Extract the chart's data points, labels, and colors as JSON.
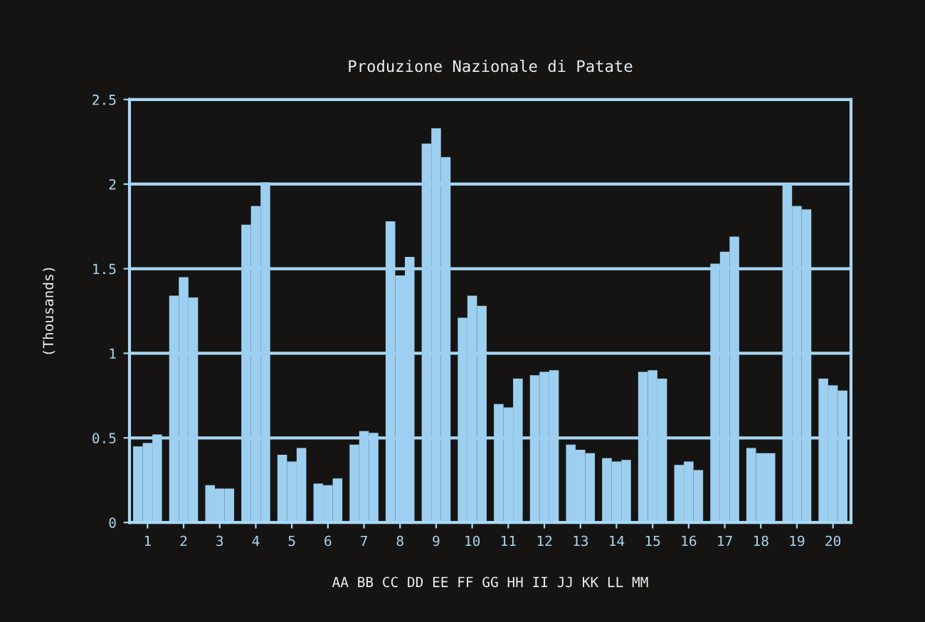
{
  "chart_data": {
    "type": "bar",
    "title": "Produzione Nazionale di Patate",
    "ylabel": "(Thousands)",
    "xlabel": "AA BB CC DD EE FF GG HH II JJ KK LL MM",
    "categories": [
      "1",
      "2",
      "3",
      "4",
      "5",
      "6",
      "7",
      "8",
      "9",
      "10",
      "11",
      "12",
      "13",
      "14",
      "15",
      "16",
      "17",
      "18",
      "19",
      "20"
    ],
    "series": [
      {
        "color": "#9ccff0",
        "values": [
          0.45,
          1.34,
          0.22,
          1.76,
          0.4,
          0.23,
          0.46,
          1.78,
          2.24,
          1.21,
          0.7,
          0.87,
          0.46,
          0.38,
          0.89,
          0.34,
          1.53,
          0.44,
          2.0,
          0.85
        ]
      },
      {
        "color": "#9ccff0",
        "values": [
          0.47,
          1.45,
          0.2,
          1.87,
          0.36,
          0.22,
          0.54,
          1.46,
          2.33,
          1.34,
          0.68,
          0.89,
          0.43,
          0.36,
          0.9,
          0.36,
          1.6,
          0.41,
          1.87,
          0.81
        ]
      },
      {
        "color": "#9ccff0",
        "values": [
          0.52,
          1.33,
          0.2,
          2.01,
          0.44,
          0.26,
          0.53,
          1.57,
          2.16,
          1.28,
          0.85,
          0.9,
          0.41,
          0.37,
          0.85,
          0.31,
          1.69,
          0.41,
          1.85,
          0.78
        ]
      }
    ],
    "ylim": [
      0,
      2.5
    ],
    "yticks": [
      0,
      0.5,
      1,
      1.5,
      2,
      2.5
    ],
    "grid": "y"
  }
}
